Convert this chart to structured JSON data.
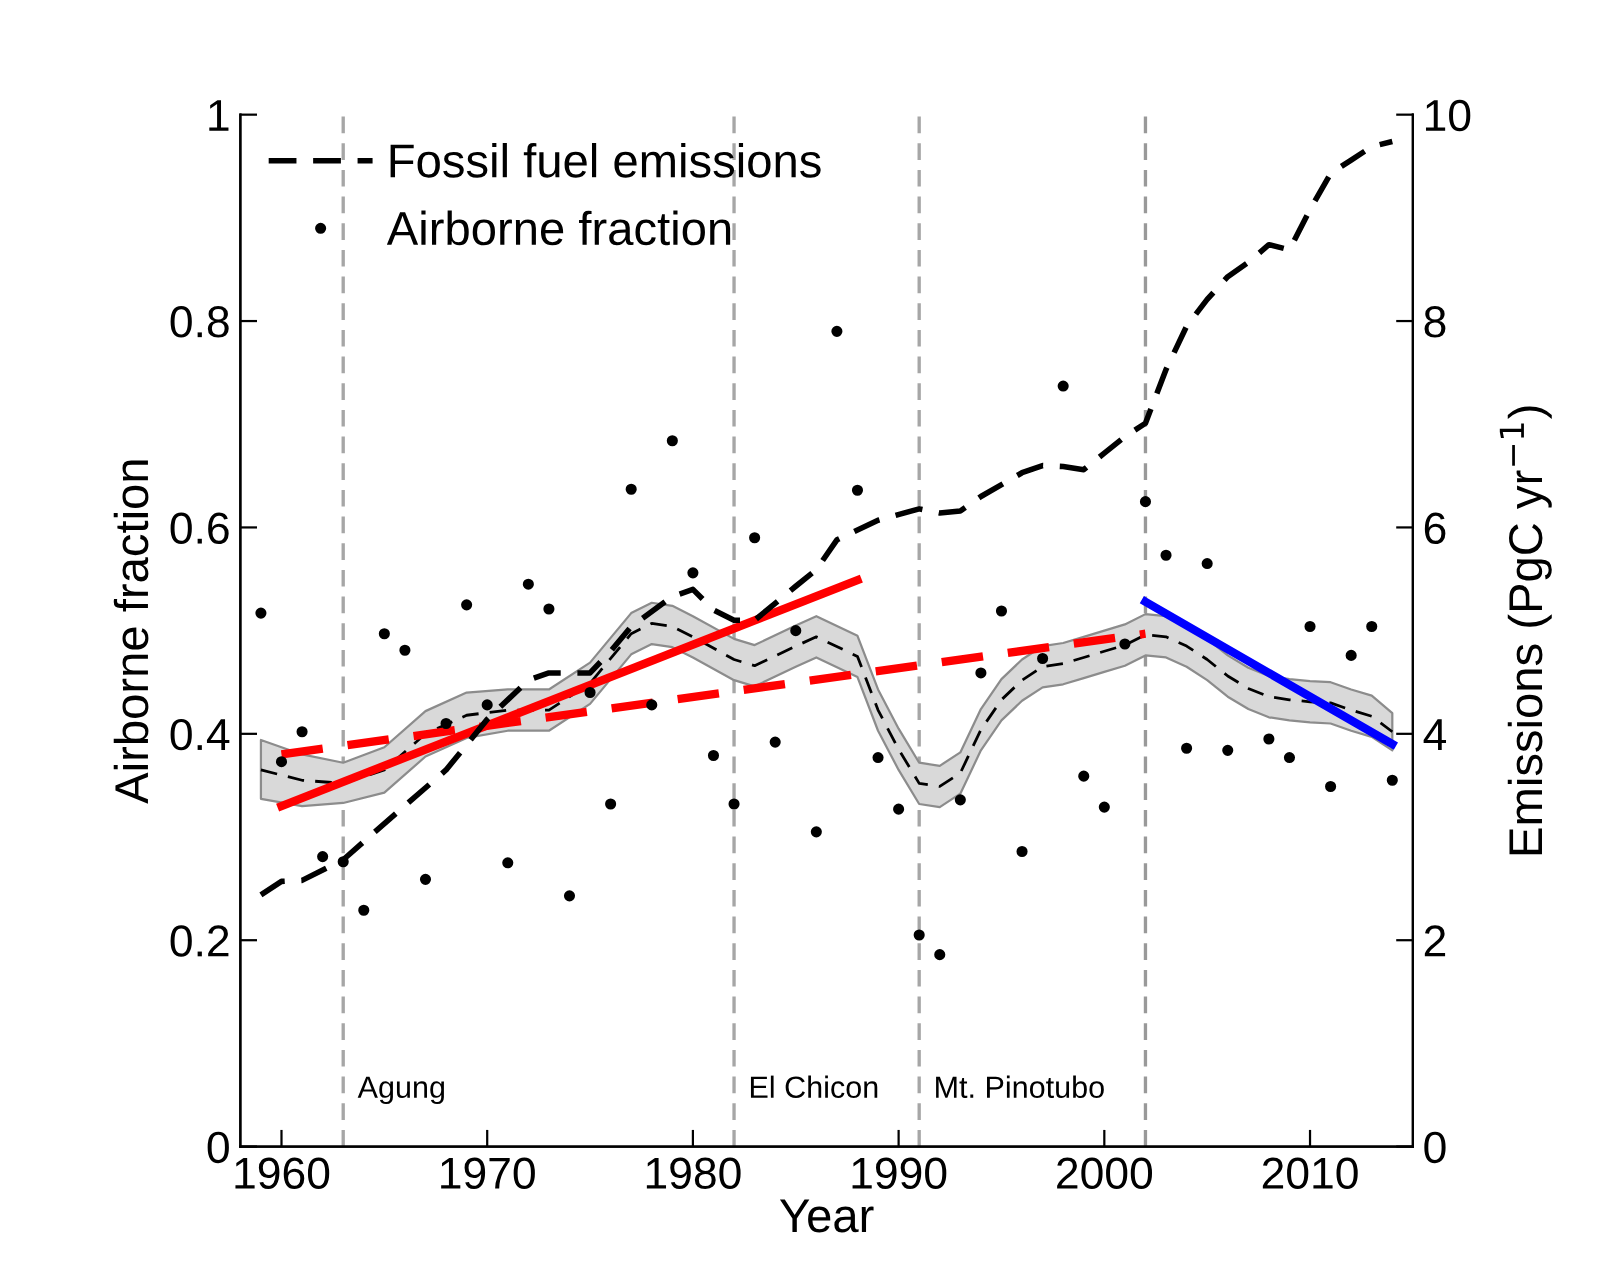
{
  "chart_data": {
    "type": "line",
    "xlabel": "Year",
    "ylabel": "Airborne fraction",
    "y2label": "Emissions (PgC yr$^{−1}$)",
    "xlim": [
      1958,
      2015
    ],
    "xticks": [
      1960,
      1970,
      1980,
      1990,
      2000,
      2010
    ],
    "ylim": [
      0,
      1
    ],
    "yticks": [
      0,
      0.2,
      0.4,
      0.6,
      0.8,
      1
    ],
    "y2lim": [
      0,
      10
    ],
    "y2ticks": [
      0,
      2,
      4,
      6,
      8,
      10
    ],
    "grid": false,
    "legend": "top left",
    "ref_lines": [
      {
        "axis": "x",
        "value": 1963,
        "label": "Agung",
        "color": "#a6a6a6",
        "line_style": "dashed"
      },
      {
        "axis": "x",
        "value": 1982,
        "label": "El Chicon",
        "color": "#a6a6a6",
        "line_style": "dashed"
      },
      {
        "axis": "x",
        "value": 1991,
        "label": "Mt. Pinotubo",
        "color": "#a6a6a6",
        "line_style": "dashed"
      },
      {
        "axis": "x",
        "value": 2002,
        "label": null,
        "color": "#999999",
        "line_style": "dashed"
      }
    ],
    "series": [
      {
        "name": "Fossil fuel emissions",
        "axis": "y2",
        "color": "#000000",
        "line_style": "dashed",
        "marker": "none",
        "x": [
          1959,
          1960,
          1961,
          1963,
          1965,
          1968,
          1970,
          1972,
          1973,
          1975,
          1976,
          1977,
          1979,
          1980,
          1981,
          1982,
          1983,
          1985,
          1986,
          1987,
          1989,
          1991,
          1992,
          1993,
          1994,
          1996,
          1997,
          1998,
          1999,
          2000,
          2001,
          2002,
          2003,
          2004,
          2005,
          2006,
          2007,
          2008,
          2009,
          2010,
          2011,
          2012,
          2013,
          2014
        ],
        "values": [
          2.44,
          2.57,
          2.58,
          2.78,
          3.13,
          3.65,
          4.14,
          4.52,
          4.59,
          4.59,
          4.8,
          5.04,
          5.33,
          5.4,
          5.2,
          5.1,
          5.1,
          5.43,
          5.59,
          5.88,
          6.07,
          6.18,
          6.14,
          6.16,
          6.3,
          6.53,
          6.6,
          6.59,
          6.56,
          6.72,
          6.88,
          7.01,
          7.53,
          7.95,
          8.21,
          8.43,
          8.57,
          8.74,
          8.69,
          9.08,
          9.43,
          9.56,
          9.69,
          9.74
        ]
      },
      {
        "name": "Airborne fraction",
        "type": "scatter",
        "color": "#000000",
        "marker": "circle",
        "x": [
          1959,
          1960,
          1961,
          1962,
          1963,
          1964,
          1965,
          1966,
          1967,
          1968,
          1969,
          1970,
          1971,
          1972,
          1973,
          1974,
          1975,
          1976,
          1977,
          1978,
          1979,
          1980,
          1981,
          1982,
          1983,
          1984,
          1985,
          1986,
          1987,
          1988,
          1989,
          1990,
          1991,
          1992,
          1993,
          1994,
          1995,
          1996,
          1997,
          1998,
          1999,
          2000,
          2001,
          2002,
          2003,
          2004,
          2005,
          2006,
          2008,
          2009,
          2010,
          2011,
          2012,
          2013,
          2014
        ],
        "values": [
          0.517,
          0.373,
          0.402,
          0.281,
          0.276,
          0.229,
          0.497,
          0.481,
          0.259,
          0.41,
          0.525,
          0.428,
          0.275,
          0.545,
          0.521,
          0.243,
          0.44,
          0.332,
          0.637,
          0.428,
          0.684,
          0.556,
          0.379,
          0.332,
          0.59,
          0.392,
          0.5,
          0.305,
          0.79,
          0.636,
          0.377,
          0.327,
          0.205,
          0.186,
          0.336,
          0.459,
          0.519,
          0.286,
          0.473,
          0.737,
          0.359,
          0.329,
          0.487,
          0.625,
          0.573,
          0.386,
          0.565,
          0.384,
          0.395,
          0.377,
          0.504,
          0.349,
          0.476,
          0.504,
          0.355
        ]
      },
      {
        "color": "#000000",
        "line_style": "dashed",
        "marker": "none",
        "x": [
          1959,
          1961,
          1963,
          1965,
          1967,
          1969,
          1971,
          1973,
          1975,
          1977,
          1978,
          1979,
          1980,
          1982,
          1983,
          1985,
          1986,
          1988,
          1989,
          1990,
          1991,
          1992,
          1993,
          1994,
          1995,
          1996,
          1997,
          1998,
          1999,
          2000,
          2001,
          2002,
          2003,
          2004,
          2005,
          2006,
          2007,
          2008,
          2009,
          2010,
          2011,
          2012,
          2013,
          2014
        ],
        "values": [
          0.365,
          0.355,
          0.352,
          0.365,
          0.4,
          0.418,
          0.423,
          0.423,
          0.449,
          0.497,
          0.507,
          0.504,
          0.494,
          0.472,
          0.466,
          0.485,
          0.494,
          0.475,
          0.423,
          0.385,
          0.352,
          0.349,
          0.362,
          0.404,
          0.433,
          0.452,
          0.465,
          0.468,
          0.474,
          0.48,
          0.486,
          0.496,
          0.494,
          0.485,
          0.472,
          0.456,
          0.444,
          0.436,
          0.433,
          0.431,
          0.43,
          0.423,
          0.417,
          0.402
        ],
        "lower": [
          0.337,
          0.33,
          0.333,
          0.343,
          0.378,
          0.396,
          0.403,
          0.403,
          0.429,
          0.477,
          0.487,
          0.484,
          0.474,
          0.452,
          0.446,
          0.465,
          0.474,
          0.455,
          0.403,
          0.365,
          0.332,
          0.329,
          0.342,
          0.384,
          0.413,
          0.432,
          0.445,
          0.448,
          0.454,
          0.46,
          0.466,
          0.476,
          0.474,
          0.465,
          0.452,
          0.436,
          0.424,
          0.416,
          0.413,
          0.411,
          0.41,
          0.403,
          0.397,
          0.384
        ],
        "upper": [
          0.394,
          0.38,
          0.372,
          0.387,
          0.422,
          0.44,
          0.443,
          0.443,
          0.469,
          0.517,
          0.527,
          0.524,
          0.514,
          0.492,
          0.486,
          0.505,
          0.514,
          0.495,
          0.443,
          0.405,
          0.372,
          0.369,
          0.382,
          0.424,
          0.453,
          0.472,
          0.485,
          0.488,
          0.494,
          0.5,
          0.506,
          0.516,
          0.514,
          0.505,
          0.492,
          0.476,
          0.464,
          0.456,
          0.453,
          0.451,
          0.45,
          0.443,
          0.437,
          0.42
        ]
      },
      {
        "color": "#ff0000",
        "line_style": "solid",
        "marker": "none",
        "x": [
          1960,
          1988
        ],
        "values": [
          0.33,
          0.549
        ]
      },
      {
        "color": "#ff0000",
        "line_style": "dashed",
        "marker": "none",
        "x": [
          1960,
          2002
        ],
        "values": [
          0.38,
          0.497
        ]
      },
      {
        "color": "#0000ff",
        "line_style": "solid",
        "marker": "none",
        "x": [
          2002,
          2014
        ],
        "values": [
          0.528,
          0.39
        ]
      }
    ]
  }
}
